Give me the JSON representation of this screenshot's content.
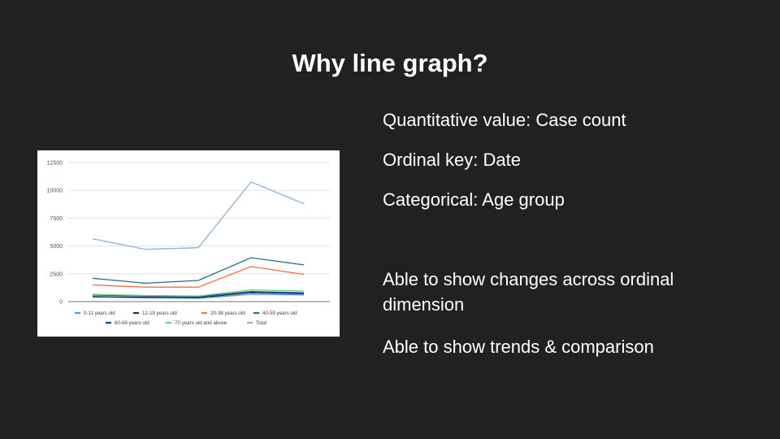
{
  "slide": {
    "title": "Why line graph?",
    "bullets": [
      "Quantitative value: Case count",
      "Ordinal key: Date",
      "Categorical: Age group",
      "Able to show changes across ordinal dimension",
      "Able to show trends & comparison"
    ]
  },
  "colors": {
    "background": "#212121",
    "text": "#ffffff"
  },
  "chart_data": {
    "type": "line",
    "title": "",
    "xlabel": "",
    "ylabel": "",
    "x": [
      "",
      "",
      "",
      "",
      ""
    ],
    "ylim": [
      0,
      12500
    ],
    "yticks": [
      "0",
      "2500",
      "5000",
      "7500",
      "10000",
      "12500"
    ],
    "grid": true,
    "legend_placement": "bottom",
    "series": [
      {
        "name": "0-11 years old",
        "color": "#5b9bd5",
        "values": [
          400,
          350,
          300,
          650,
          600
        ]
      },
      {
        "name": "12-19 years old",
        "color": "#17324d",
        "values": [
          450,
          380,
          350,
          800,
          700
        ]
      },
      {
        "name": "20-38 years old",
        "color": "#f4703c",
        "values": [
          1500,
          1300,
          1300,
          3150,
          2450
        ]
      },
      {
        "name": "40-59 years old",
        "color": "#1f6e8c",
        "values": [
          2100,
          1650,
          1900,
          3950,
          3300
        ]
      },
      {
        "name": "60-69 years old",
        "color": "#1a3fa8",
        "values": [
          600,
          500,
          450,
          900,
          800
        ]
      },
      {
        "name": "70 years old and above",
        "color": "#5fd17a",
        "values": [
          650,
          550,
          500,
          1050,
          950
        ]
      },
      {
        "name": "Total",
        "color": "#8fb1d6",
        "values": [
          5650,
          4700,
          4850,
          10750,
          8800
        ]
      }
    ]
  }
}
